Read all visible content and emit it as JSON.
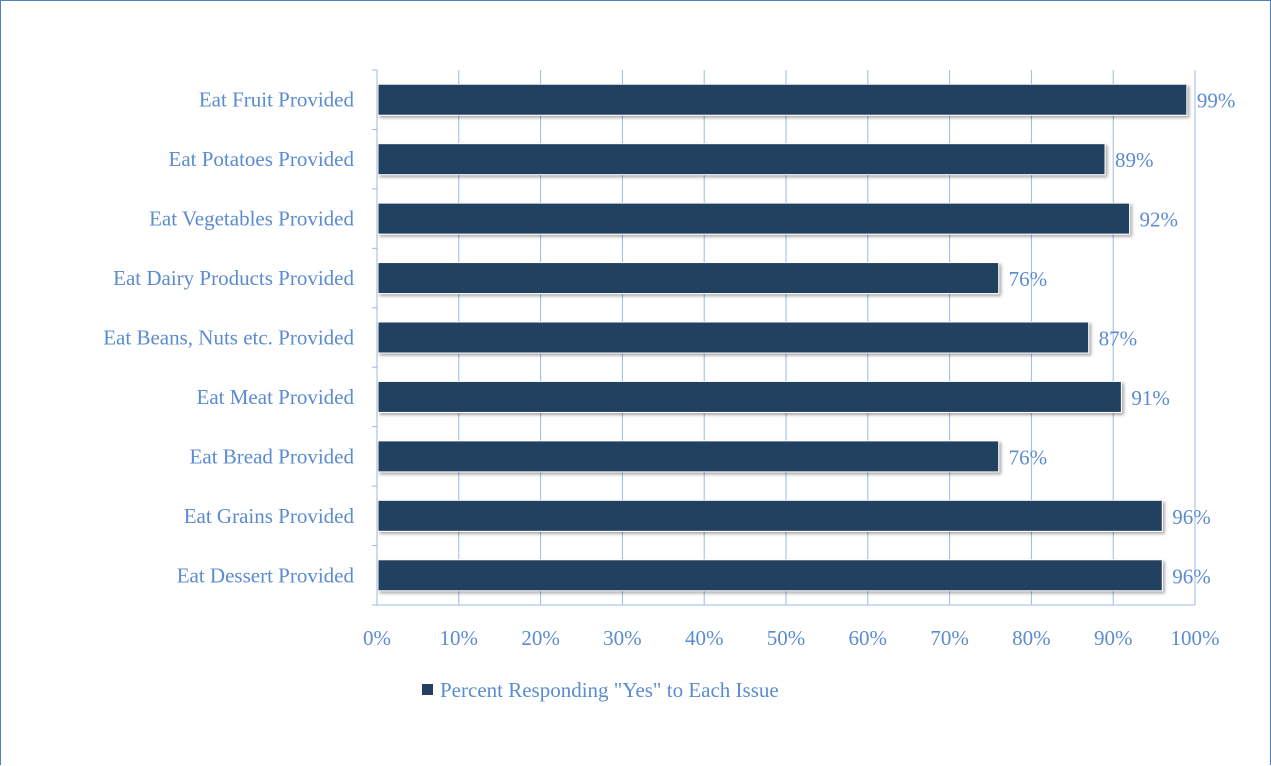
{
  "chart_data": {
    "type": "bar",
    "orientation": "horizontal",
    "categories": [
      "Eat Fruit Provided",
      "Eat Potatoes Provided",
      "Eat Vegetables Provided",
      "Eat Dairy Products Provided",
      "Eat Beans, Nuts etc. Provided",
      "Eat Meat Provided",
      "Eat Bread Provided",
      "Eat Grains Provided",
      "Eat Dessert Provided"
    ],
    "series": [
      {
        "name": "Percent Responding \"Yes\" to Each Issue",
        "values": [
          99,
          89,
          92,
          76,
          87,
          91,
          76,
          96,
          96
        ],
        "labels": [
          "99%",
          "89%",
          "92%",
          "76%",
          "87%",
          "91%",
          "76%",
          "96%",
          "96%"
        ]
      }
    ],
    "xticks": [
      "0%",
      "10%",
      "20%",
      "30%",
      "40%",
      "50%",
      "60%",
      "70%",
      "80%",
      "90%",
      "100%"
    ],
    "xlim": [
      0,
      100
    ],
    "grid": "vertical",
    "legend_position": "bottom",
    "colors": {
      "bar": "#243f60",
      "text": "#5b8bd0",
      "axis": "#9bb8e4",
      "border": "#4f81bd"
    }
  }
}
